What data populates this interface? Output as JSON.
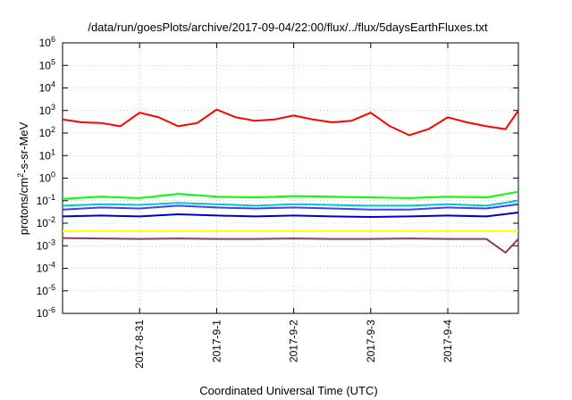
{
  "chart_data": {
    "type": "line",
    "title": "/data/run/goesPlots/archive/2017-09-04/22:00/flux/../flux/5daysEarthFluxes.txt",
    "xlabel": "Coordinated Universal Time (UTC)",
    "ylabel": {
      "base": "protons/cm",
      "sup": "2",
      "rest": "-s-sr-MeV"
    },
    "y_scale": "log",
    "ylim": [
      1e-06,
      1000000.0
    ],
    "xlim": [
      "2017-08-30 00:00",
      "2017-09-04 22:00"
    ],
    "x_ticks": [
      "2017-8-31",
      "2017-9-1",
      "2017-9-2",
      "2017-9-3",
      "2017-9-4"
    ],
    "y_ticks": [
      {
        "base": "10",
        "exp": "6",
        "value": 1000000.0
      },
      {
        "base": "10",
        "exp": "5",
        "value": 100000.0
      },
      {
        "base": "10",
        "exp": "4",
        "value": 10000.0
      },
      {
        "base": "10",
        "exp": "3",
        "value": 1000.0
      },
      {
        "base": "10",
        "exp": "2",
        "value": 100.0
      },
      {
        "base": "10",
        "exp": "1",
        "value": 10.0
      },
      {
        "base": "10",
        "exp": "0",
        "value": 1
      },
      {
        "base": "10",
        "exp": "-1",
        "value": 0.1
      },
      {
        "base": "10",
        "exp": "-2",
        "value": 0.01
      },
      {
        "base": "10",
        "exp": "-3",
        "value": 0.001
      },
      {
        "base": "10",
        "exp": "-4",
        "value": 0.0001
      },
      {
        "base": "10",
        "exp": "-5",
        "value": 1e-05
      },
      {
        "base": "10",
        "exp": "-6",
        "value": 1e-06
      }
    ],
    "grid": true,
    "legend": "none",
    "series": [
      {
        "color": "#ff0000",
        "x": [
          "2017-08-30 00:00",
          "2017-08-30 06:00",
          "2017-08-30 12:00",
          "2017-08-30 18:00",
          "2017-08-31 00:00",
          "2017-08-31 06:00",
          "2017-08-31 12:00",
          "2017-08-31 18:00",
          "2017-09-01 00:00",
          "2017-09-01 06:00",
          "2017-09-01 12:00",
          "2017-09-01 18:00",
          "2017-09-02 00:00",
          "2017-09-02 06:00",
          "2017-09-02 12:00",
          "2017-09-02 18:00",
          "2017-09-03 00:00",
          "2017-09-03 06:00",
          "2017-09-03 12:00",
          "2017-09-03 18:00",
          "2017-09-04 00:00",
          "2017-09-04 06:00",
          "2017-09-04 12:00",
          "2017-09-04 18:00",
          "2017-09-04 22:00"
        ],
        "values": [
          400,
          300,
          280,
          200,
          800,
          500,
          200,
          280,
          1100,
          500,
          350,
          400,
          600,
          400,
          300,
          350,
          800,
          200,
          80,
          150,
          500,
          300,
          200,
          150,
          1000
        ]
      },
      {
        "color": "#00ff00",
        "x": [
          "2017-08-30 00:00",
          "2017-08-30 12:00",
          "2017-08-31 00:00",
          "2017-08-31 12:00",
          "2017-09-01 00:00",
          "2017-09-01 12:00",
          "2017-09-02 00:00",
          "2017-09-02 12:00",
          "2017-09-03 00:00",
          "2017-09-03 12:00",
          "2017-09-04 00:00",
          "2017-09-04 12:00",
          "2017-09-04 22:00"
        ],
        "values": [
          0.12,
          0.15,
          0.13,
          0.2,
          0.15,
          0.14,
          0.16,
          0.15,
          0.14,
          0.13,
          0.15,
          0.14,
          0.25
        ]
      },
      {
        "color": "#00c8c8",
        "x": [
          "2017-08-30 00:00",
          "2017-08-30 12:00",
          "2017-08-31 00:00",
          "2017-08-31 12:00",
          "2017-09-01 00:00",
          "2017-09-01 12:00",
          "2017-09-02 00:00",
          "2017-09-02 12:00",
          "2017-09-03 00:00",
          "2017-09-03 12:00",
          "2017-09-04 00:00",
          "2017-09-04 12:00",
          "2017-09-04 22:00"
        ],
        "values": [
          0.06,
          0.07,
          0.065,
          0.08,
          0.07,
          0.06,
          0.07,
          0.065,
          0.06,
          0.06,
          0.07,
          0.06,
          0.1
        ]
      },
      {
        "color": "#4040ff",
        "x": [
          "2017-08-30 00:00",
          "2017-08-30 12:00",
          "2017-08-31 00:00",
          "2017-08-31 12:00",
          "2017-09-01 00:00",
          "2017-09-01 12:00",
          "2017-09-02 00:00",
          "2017-09-02 12:00",
          "2017-09-03 00:00",
          "2017-09-03 12:00",
          "2017-09-04 00:00",
          "2017-09-04 12:00",
          "2017-09-04 22:00"
        ],
        "values": [
          0.04,
          0.05,
          0.045,
          0.06,
          0.05,
          0.045,
          0.05,
          0.045,
          0.04,
          0.04,
          0.05,
          0.045,
          0.07
        ]
      },
      {
        "color": "#0000c8",
        "x": [
          "2017-08-30 00:00",
          "2017-08-30 12:00",
          "2017-08-31 00:00",
          "2017-08-31 12:00",
          "2017-09-01 00:00",
          "2017-09-01 12:00",
          "2017-09-02 00:00",
          "2017-09-02 12:00",
          "2017-09-03 00:00",
          "2017-09-03 12:00",
          "2017-09-04 00:00",
          "2017-09-04 12:00",
          "2017-09-04 22:00"
        ],
        "values": [
          0.02,
          0.022,
          0.02,
          0.025,
          0.022,
          0.02,
          0.022,
          0.02,
          0.019,
          0.02,
          0.022,
          0.02,
          0.03
        ]
      },
      {
        "color": "#ffff00",
        "x": [
          "2017-08-30 00:00",
          "2017-08-31 00:00",
          "2017-09-01 00:00",
          "2017-09-02 00:00",
          "2017-09-03 00:00",
          "2017-09-04 00:00",
          "2017-09-04 22:00"
        ],
        "values": [
          0.0045,
          0.0045,
          0.0045,
          0.0045,
          0.0045,
          0.0045,
          0.0045
        ]
      },
      {
        "color": "#8b3a62",
        "x": [
          "2017-08-30 00:00",
          "2017-08-30 12:00",
          "2017-08-31 00:00",
          "2017-08-31 12:00",
          "2017-09-01 00:00",
          "2017-09-01 12:00",
          "2017-09-02 00:00",
          "2017-09-02 12:00",
          "2017-09-03 00:00",
          "2017-09-03 12:00",
          "2017-09-04 00:00",
          "2017-09-04 12:00",
          "2017-09-04 18:00",
          "2017-09-04 22:00"
        ],
        "values": [
          0.0022,
          0.0021,
          0.002,
          0.0021,
          0.002,
          0.002,
          0.0021,
          0.002,
          0.002,
          0.0021,
          0.002,
          0.002,
          0.0005,
          0.002
        ]
      }
    ]
  }
}
